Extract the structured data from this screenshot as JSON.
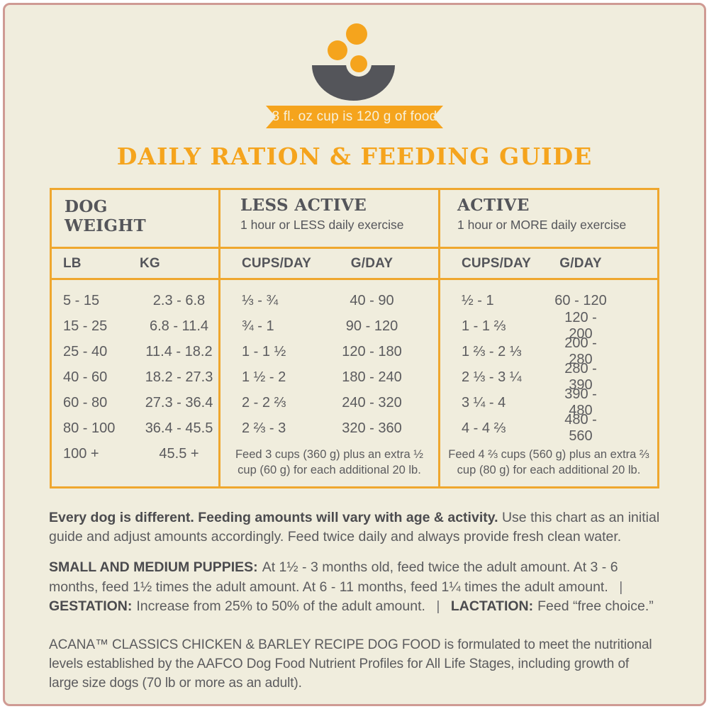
{
  "colors": {
    "background": "#F0EDDD",
    "accent_orange": "#F5A41D",
    "table_border": "#EFA72E",
    "heading_gray": "#54555A",
    "body_gray": "#5B5B5E",
    "frame_pink": "#CF9A93"
  },
  "icons": {
    "bowl": "dog-bowl-with-kibble-icon"
  },
  "banner": {
    "text": "8 fl. oz cup is 120 g of food"
  },
  "title": "DAILY RATION & FEEDING GUIDE",
  "table": {
    "weight": {
      "title": "DOG WEIGHT",
      "columns": [
        "LB",
        "KG"
      ],
      "rows": [
        [
          "5 - 15",
          "2.3 - 6.8"
        ],
        [
          "15 - 25",
          "6.8 - 11.4"
        ],
        [
          "25 - 40",
          "11.4 - 18.2"
        ],
        [
          "40 - 60",
          "18.2 - 27.3"
        ],
        [
          "60 - 80",
          "27.3 - 36.4"
        ],
        [
          "80 - 100",
          "36.4 - 45.5"
        ],
        [
          "100 +",
          "45.5 +"
        ]
      ]
    },
    "less_active": {
      "title": "LESS ACTIVE",
      "subtitle": "1 hour or LESS daily exercise",
      "columns": [
        "CUPS/DAY",
        "G/DAY"
      ],
      "rows": [
        [
          "⅓ - ¾",
          "40 - 90"
        ],
        [
          "¾ - 1",
          "90 - 120"
        ],
        [
          "1 - 1 ½",
          "120 - 180"
        ],
        [
          "1 ½ - 2",
          "180 - 240"
        ],
        [
          "2 - 2 ⅔",
          "240 - 320"
        ],
        [
          "2 ⅔ - 3",
          "320 - 360"
        ]
      ],
      "note": "Feed 3 cups (360 g) plus an extra ½ cup (60 g) for each additional 20 lb."
    },
    "active": {
      "title": "ACTIVE",
      "subtitle": "1 hour or MORE daily exercise",
      "columns": [
        "CUPS/DAY",
        "G/DAY"
      ],
      "rows": [
        [
          "½ - 1",
          "60 - 120"
        ],
        [
          "1 - 1 ⅔",
          "120 - 200"
        ],
        [
          "1 ⅔ - 2 ⅓",
          "200 - 280"
        ],
        [
          "2 ⅓ - 3 ¼",
          "280 - 390"
        ],
        [
          "3 ¼ - 4",
          "390 - 480"
        ],
        [
          "4 - 4 ⅔",
          "480 - 560"
        ]
      ],
      "note": "Feed 4 ⅔ cups (560 g) plus an extra ⅔ cup (80 g) for each additional 20 lb."
    }
  },
  "footnotes": {
    "general": {
      "bold": "Every dog is different. Feeding amounts will vary with age & activity.",
      "text": "Use this chart as an initial guide and adjust amounts accordingly. Feed twice daily and always provide fresh clean water."
    },
    "puppies": {
      "label": "SMALL AND MEDIUM PUPPIES:",
      "text": "At 1½ - 3 months old, feed twice the adult amount. At 3 - 6 months, feed 1½ times the adult amount. At 6 - 11 months, feed 1¼ times the adult amount."
    },
    "separator": "|",
    "gestation": {
      "label": "GESTATION:",
      "text": "Increase from 25% to 50% of the adult amount."
    },
    "lactation": {
      "label": "LACTATION:",
      "text": "Feed “free choice.”"
    },
    "aafco": "ACANA™ CLASSICS CHICKEN & BARLEY RECIPE DOG FOOD is formulated to meet the nutritional levels established by the AAFCO Dog Food Nutrient Profiles for All Life Stages, including growth of large size dogs (70 lb or more as an adult)."
  }
}
